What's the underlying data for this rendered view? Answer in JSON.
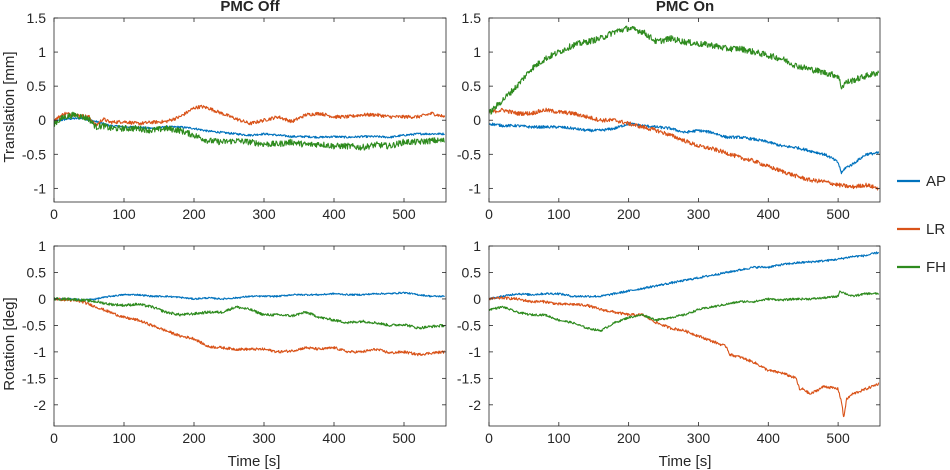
{
  "chart_data": [
    {
      "type": "line",
      "id": "trans-off",
      "title": "PMC Off",
      "xlabel": "",
      "ylabel": "Translation [mm]",
      "xlim": [
        0,
        560
      ],
      "ylim": [
        -1.2,
        1.5
      ],
      "xticks": [
        0,
        100,
        200,
        300,
        400,
        500
      ],
      "yticks": [
        -1,
        -0.5,
        0,
        0.5,
        1,
        1.5
      ],
      "xtick_labels": [
        "0",
        "100",
        "200",
        "300",
        "400",
        "500"
      ],
      "ytick_labels": [
        "-1",
        "-0.5",
        "0",
        "0.5",
        "1",
        "1.5"
      ],
      "series": [
        {
          "name": "AP",
          "noise": 0.015,
          "x": [
            0,
            20,
            40,
            60,
            80,
            100,
            120,
            140,
            160,
            180,
            200,
            220,
            240,
            260,
            280,
            300,
            320,
            340,
            360,
            380,
            400,
            420,
            440,
            460,
            480,
            500,
            520,
            540,
            558
          ],
          "y": [
            -0.02,
            0.02,
            0.03,
            -0.02,
            -0.08,
            -0.1,
            -0.1,
            -0.12,
            -0.1,
            -0.1,
            -0.12,
            -0.16,
            -0.18,
            -0.2,
            -0.22,
            -0.2,
            -0.22,
            -0.24,
            -0.24,
            -0.25,
            -0.24,
            -0.25,
            -0.24,
            -0.24,
            -0.25,
            -0.22,
            -0.2,
            -0.2,
            -0.2
          ]
        },
        {
          "name": "LR",
          "noise": 0.025,
          "x": [
            0,
            15,
            30,
            50,
            60,
            70,
            80,
            100,
            120,
            140,
            160,
            180,
            200,
            210,
            220,
            240,
            260,
            280,
            300,
            320,
            340,
            360,
            380,
            400,
            420,
            440,
            460,
            480,
            500,
            520,
            540,
            558
          ],
          "y": [
            0.0,
            0.1,
            0.08,
            0.05,
            -0.08,
            0.02,
            -0.03,
            -0.02,
            -0.05,
            -0.03,
            -0.02,
            0.05,
            0.18,
            0.2,
            0.18,
            0.1,
            0.02,
            -0.05,
            0.0,
            0.05,
            -0.02,
            0.08,
            0.1,
            0.05,
            0.05,
            0.08,
            0.08,
            0.05,
            0.05,
            0.05,
            0.1,
            0.05
          ]
        },
        {
          "name": "FH",
          "noise": 0.045,
          "x": [
            0,
            15,
            30,
            50,
            60,
            70,
            80,
            100,
            120,
            140,
            160,
            180,
            200,
            220,
            240,
            260,
            280,
            300,
            320,
            340,
            360,
            380,
            400,
            420,
            440,
            460,
            480,
            500,
            520,
            540,
            558
          ],
          "y": [
            -0.05,
            0.05,
            0.08,
            0.02,
            -0.1,
            -0.08,
            -0.12,
            -0.12,
            -0.12,
            -0.15,
            -0.12,
            -0.15,
            -0.22,
            -0.3,
            -0.32,
            -0.3,
            -0.32,
            -0.35,
            -0.35,
            -0.32,
            -0.36,
            -0.35,
            -0.38,
            -0.38,
            -0.4,
            -0.36,
            -0.38,
            -0.32,
            -0.32,
            -0.3,
            -0.3
          ]
        }
      ]
    },
    {
      "type": "line",
      "id": "trans-on",
      "title": "PMC On",
      "xlabel": "",
      "ylabel": "",
      "xlim": [
        0,
        560
      ],
      "ylim": [
        -1.2,
        1.5
      ],
      "xticks": [
        0,
        100,
        200,
        300,
        400,
        500
      ],
      "yticks": [
        -1,
        -0.5,
        0,
        0.5,
        1,
        1.5
      ],
      "xtick_labels": [
        "0",
        "100",
        "200",
        "300",
        "400",
        "500"
      ],
      "ytick_labels": [
        "-1",
        "-0.5",
        "0",
        "0.5",
        "1",
        "1.5"
      ],
      "series": [
        {
          "name": "AP",
          "noise": 0.02,
          "x": [
            0,
            20,
            40,
            60,
            80,
            100,
            120,
            140,
            160,
            180,
            200,
            220,
            240,
            260,
            280,
            300,
            320,
            340,
            360,
            380,
            400,
            420,
            440,
            460,
            480,
            490,
            500,
            505,
            510,
            520,
            540,
            558
          ],
          "y": [
            -0.05,
            -0.08,
            -0.08,
            -0.1,
            -0.1,
            -0.1,
            -0.12,
            -0.15,
            -0.15,
            -0.12,
            -0.05,
            -0.08,
            -0.1,
            -0.12,
            -0.18,
            -0.15,
            -0.18,
            -0.25,
            -0.25,
            -0.28,
            -0.32,
            -0.38,
            -0.4,
            -0.45,
            -0.5,
            -0.55,
            -0.62,
            -0.78,
            -0.7,
            -0.65,
            -0.5,
            -0.48
          ]
        },
        {
          "name": "LR",
          "noise": 0.03,
          "x": [
            0,
            20,
            40,
            60,
            80,
            100,
            120,
            140,
            160,
            180,
            200,
            220,
            240,
            260,
            280,
            300,
            320,
            340,
            360,
            380,
            400,
            420,
            440,
            460,
            480,
            500,
            520,
            540,
            558
          ],
          "y": [
            0.12,
            0.15,
            0.1,
            0.1,
            0.15,
            0.12,
            0.1,
            0.05,
            0.0,
            0.0,
            -0.05,
            -0.1,
            -0.15,
            -0.22,
            -0.3,
            -0.38,
            -0.42,
            -0.48,
            -0.55,
            -0.6,
            -0.68,
            -0.75,
            -0.82,
            -0.88,
            -0.9,
            -0.95,
            -0.98,
            -0.95,
            -1.0
          ]
        },
        {
          "name": "FH",
          "noise": 0.045,
          "x": [
            0,
            20,
            40,
            60,
            80,
            100,
            120,
            140,
            160,
            180,
            200,
            220,
            240,
            260,
            280,
            300,
            320,
            340,
            360,
            380,
            400,
            420,
            440,
            460,
            480,
            500,
            505,
            510,
            520,
            540,
            558
          ],
          "y": [
            0.1,
            0.3,
            0.5,
            0.75,
            0.9,
            1.0,
            1.1,
            1.15,
            1.2,
            1.3,
            1.35,
            1.3,
            1.15,
            1.2,
            1.15,
            1.12,
            1.1,
            1.05,
            1.05,
            1.0,
            0.95,
            0.9,
            0.8,
            0.75,
            0.7,
            0.65,
            0.48,
            0.55,
            0.58,
            0.65,
            0.7
          ]
        }
      ]
    },
    {
      "type": "line",
      "id": "rot-off",
      "title": "",
      "xlabel": "Time [s]",
      "ylabel": "Rotation [deg]",
      "xlim": [
        0,
        560
      ],
      "ylim": [
        -2.4,
        1.0
      ],
      "xticks": [
        0,
        100,
        200,
        300,
        400,
        500
      ],
      "yticks": [
        -2,
        -1.5,
        -1,
        -0.5,
        0,
        0.5,
        1
      ],
      "xtick_labels": [
        "0",
        "100",
        "200",
        "300",
        "400",
        "500"
      ],
      "ytick_labels": [
        "-2",
        "-1.5",
        "-1",
        "-0.5",
        "0",
        "0.5",
        "1"
      ],
      "series": [
        {
          "name": "AP",
          "noise": 0.015,
          "x": [
            0,
            20,
            40,
            60,
            80,
            100,
            120,
            140,
            160,
            180,
            200,
            220,
            240,
            260,
            280,
            300,
            320,
            340,
            360,
            380,
            400,
            420,
            440,
            460,
            480,
            500,
            520,
            540,
            558
          ],
          "y": [
            0.0,
            0.0,
            -0.02,
            0.0,
            0.05,
            0.08,
            0.08,
            0.05,
            0.05,
            0.03,
            0.0,
            0.02,
            0.0,
            0.02,
            0.05,
            0.05,
            0.05,
            0.08,
            0.08,
            0.08,
            0.1,
            0.08,
            0.08,
            0.1,
            0.1,
            0.12,
            0.08,
            0.05,
            0.05
          ]
        },
        {
          "name": "LR",
          "noise": 0.025,
          "x": [
            0,
            20,
            40,
            60,
            80,
            100,
            120,
            140,
            160,
            180,
            200,
            220,
            240,
            260,
            280,
            300,
            320,
            340,
            360,
            380,
            400,
            420,
            440,
            460,
            480,
            500,
            520,
            540,
            558
          ],
          "y": [
            0.0,
            -0.02,
            -0.05,
            -0.15,
            -0.25,
            -0.35,
            -0.4,
            -0.5,
            -0.6,
            -0.7,
            -0.75,
            -0.9,
            -0.92,
            -0.95,
            -0.95,
            -0.95,
            -1.0,
            -0.98,
            -0.92,
            -0.95,
            -0.92,
            -1.0,
            -1.0,
            -0.95,
            -1.02,
            -1.0,
            -1.05,
            -1.02,
            -1.0
          ]
        },
        {
          "name": "FH",
          "noise": 0.025,
          "x": [
            0,
            20,
            40,
            60,
            80,
            100,
            120,
            140,
            160,
            180,
            200,
            220,
            240,
            260,
            280,
            300,
            320,
            340,
            360,
            380,
            400,
            420,
            440,
            460,
            480,
            500,
            520,
            540,
            558
          ],
          "y": [
            0.0,
            0.0,
            -0.02,
            -0.05,
            -0.1,
            -0.12,
            -0.1,
            -0.15,
            -0.25,
            -0.3,
            -0.28,
            -0.25,
            -0.25,
            -0.15,
            -0.2,
            -0.3,
            -0.3,
            -0.32,
            -0.25,
            -0.35,
            -0.4,
            -0.45,
            -0.42,
            -0.45,
            -0.5,
            -0.48,
            -0.55,
            -0.52,
            -0.5
          ]
        }
      ]
    },
    {
      "type": "line",
      "id": "rot-on",
      "title": "",
      "xlabel": "Time [s]",
      "ylabel": "",
      "xlim": [
        0,
        560
      ],
      "ylim": [
        -2.4,
        1.0
      ],
      "xticks": [
        0,
        100,
        200,
        300,
        400,
        500
      ],
      "yticks": [
        -2,
        -1.5,
        -1,
        -0.5,
        0,
        0.5,
        1
      ],
      "xtick_labels": [
        "0",
        "100",
        "200",
        "300",
        "400",
        "500"
      ],
      "ytick_labels": [
        "-2",
        "-1.5",
        "-1",
        "-0.5",
        "0",
        "0.5",
        "1"
      ],
      "series": [
        {
          "name": "AP",
          "noise": 0.02,
          "x": [
            0,
            20,
            40,
            60,
            80,
            100,
            120,
            140,
            160,
            180,
            200,
            220,
            240,
            260,
            280,
            300,
            320,
            340,
            360,
            380,
            400,
            420,
            440,
            460,
            480,
            500,
            520,
            540,
            558
          ],
          "y": [
            0.0,
            0.05,
            0.1,
            0.08,
            0.1,
            0.1,
            0.05,
            0.05,
            0.05,
            0.1,
            0.15,
            0.2,
            0.25,
            0.3,
            0.35,
            0.4,
            0.45,
            0.5,
            0.55,
            0.6,
            0.6,
            0.65,
            0.68,
            0.7,
            0.72,
            0.75,
            0.8,
            0.82,
            0.88
          ]
        },
        {
          "name": "LR",
          "noise": 0.025,
          "x": [
            0,
            20,
            40,
            60,
            80,
            100,
            120,
            140,
            160,
            180,
            200,
            220,
            240,
            260,
            280,
            300,
            320,
            340,
            345,
            360,
            380,
            400,
            420,
            440,
            445,
            450,
            460,
            480,
            500,
            505,
            508,
            512,
            520,
            540,
            558
          ],
          "y": [
            0.0,
            0.02,
            0.0,
            -0.05,
            -0.05,
            -0.1,
            -0.1,
            -0.12,
            -0.2,
            -0.25,
            -0.3,
            -0.3,
            -0.45,
            -0.55,
            -0.6,
            -0.7,
            -0.8,
            -0.9,
            -1.05,
            -1.1,
            -1.2,
            -1.35,
            -1.4,
            -1.5,
            -1.72,
            -1.7,
            -1.8,
            -1.65,
            -1.7,
            -1.95,
            -2.25,
            -1.9,
            -1.8,
            -1.7,
            -1.6
          ]
        },
        {
          "name": "FH",
          "noise": 0.02,
          "x": [
            0,
            20,
            40,
            60,
            80,
            100,
            120,
            140,
            160,
            180,
            200,
            220,
            240,
            260,
            280,
            300,
            320,
            340,
            360,
            380,
            400,
            420,
            440,
            460,
            480,
            500,
            502,
            520,
            540,
            558
          ],
          "y": [
            -0.2,
            -0.15,
            -0.25,
            -0.3,
            -0.3,
            -0.4,
            -0.45,
            -0.55,
            -0.6,
            -0.45,
            -0.35,
            -0.3,
            -0.4,
            -0.35,
            -0.3,
            -0.2,
            -0.15,
            -0.1,
            -0.05,
            -0.05,
            0.0,
            -0.02,
            0.0,
            0.0,
            0.02,
            0.05,
            0.15,
            0.05,
            0.1,
            0.1
          ]
        }
      ]
    }
  ],
  "legend": {
    "items": [
      {
        "name": "AP",
        "color": "#0072BD"
      },
      {
        "name": "LR",
        "color": "#D95319"
      },
      {
        "name": "FH",
        "color": "#2E8B1E"
      }
    ]
  },
  "colors": {
    "AP": "#0072BD",
    "LR": "#D95319",
    "FH": "#2E8B1E",
    "axis": "#262626"
  }
}
